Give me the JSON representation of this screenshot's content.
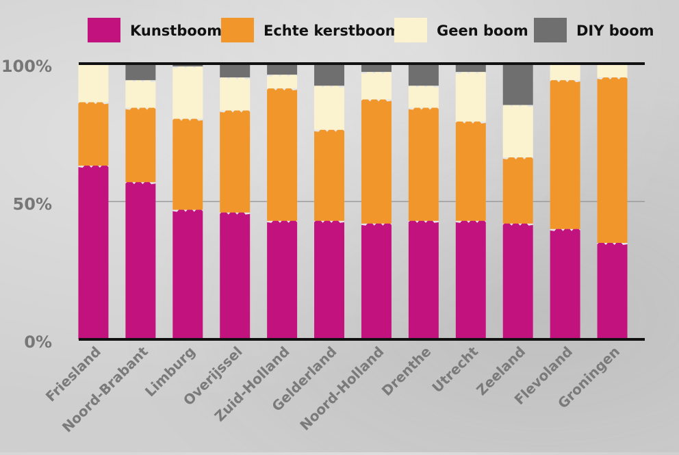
{
  "chart_data": {
    "type": "bar",
    "stacked": true,
    "categories": [
      "Friesland",
      "Noord-Brabant",
      "Limburg",
      "Overijssel",
      "Zuid-Holland",
      "Gelderland",
      "Noord-Holland",
      "Drenthe",
      "Utrecht",
      "Zeeland",
      "Flevoland",
      "Groningen"
    ],
    "series": [
      {
        "name": "Kunstboom",
        "color": "#c2127e",
        "values": [
          63,
          57,
          47,
          46,
          43,
          43,
          42,
          43,
          43,
          42,
          40,
          35
        ]
      },
      {
        "name": "Echte kerstboom",
        "color": "#f0962a",
        "values": [
          23,
          27,
          33,
          37,
          48,
          33,
          45,
          41,
          36,
          24,
          54,
          60
        ]
      },
      {
        "name": "Geen boom",
        "color": "#fbf2cf",
        "values": [
          14,
          10,
          19,
          12,
          5,
          16,
          10,
          8,
          18,
          19,
          6,
          5
        ]
      },
      {
        "name": "DIY boom",
        "color": "#6f6f6f",
        "values": [
          0,
          6,
          1,
          5,
          4,
          8,
          3,
          8,
          3,
          15,
          0,
          0
        ]
      }
    ],
    "y_ticks": [
      "0%",
      "50%",
      "100%"
    ],
    "ylim": [
      0,
      100
    ],
    "legend_position": "top",
    "grid": true
  }
}
